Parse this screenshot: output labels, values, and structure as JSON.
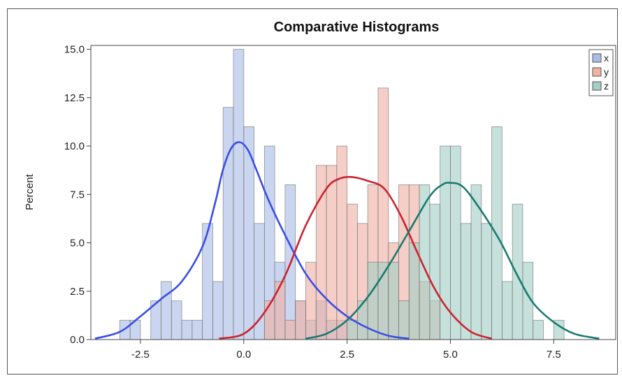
{
  "chart_data": {
    "type": "histogram",
    "title": "Comparative Histograms",
    "xlabel": "",
    "ylabel": "Percent",
    "xlim": [
      -3.7,
      9.0
    ],
    "ylim": [
      0,
      15.2
    ],
    "x_ticks": [
      "-2.5",
      "0.0",
      "2.5",
      "5.0",
      "7.5"
    ],
    "y_ticks": [
      "0.0",
      "2.5",
      "5.0",
      "7.5",
      "10.0",
      "12.5",
      "15.0"
    ],
    "bin_width": 0.25,
    "legend_position": "top-right",
    "grid": false,
    "series": [
      {
        "name": "x",
        "fill_color": "#a9bde6",
        "curve_color": "#3a4de8",
        "bins": [
          {
            "x": -2.875,
            "y": 1
          },
          {
            "x": -2.625,
            "y": 1
          },
          {
            "x": -2.125,
            "y": 2
          },
          {
            "x": -1.875,
            "y": 3
          },
          {
            "x": -1.625,
            "y": 2
          },
          {
            "x": -1.375,
            "y": 1
          },
          {
            "x": -1.125,
            "y": 1
          },
          {
            "x": -0.875,
            "y": 6
          },
          {
            "x": -0.625,
            "y": 3
          },
          {
            "x": -0.375,
            "y": 12
          },
          {
            "x": -0.125,
            "y": 15
          },
          {
            "x": 0.125,
            "y": 11
          },
          {
            "x": 0.375,
            "y": 6
          },
          {
            "x": 0.625,
            "y": 10
          },
          {
            "x": 0.875,
            "y": 4
          },
          {
            "x": 1.125,
            "y": 8
          },
          {
            "x": 1.375,
            "y": 2
          },
          {
            "x": 1.625,
            "y": 1
          },
          {
            "x": 1.875,
            "y": 2
          },
          {
            "x": 2.125,
            "y": 1
          },
          {
            "x": 2.375,
            "y": 1
          }
        ],
        "curve": [
          [
            -3.6,
            0.05
          ],
          [
            -3.0,
            0.4
          ],
          [
            -2.5,
            1.2
          ],
          [
            -2.0,
            2.1
          ],
          [
            -1.5,
            3.0
          ],
          [
            -1.0,
            4.8
          ],
          [
            -0.7,
            7.0
          ],
          [
            -0.5,
            8.8
          ],
          [
            -0.3,
            9.9
          ],
          [
            -0.1,
            10.2
          ],
          [
            0.1,
            9.8
          ],
          [
            0.3,
            8.8
          ],
          [
            0.6,
            7.2
          ],
          [
            1.0,
            5.4
          ],
          [
            1.5,
            3.4
          ],
          [
            2.0,
            2.1
          ],
          [
            2.5,
            1.2
          ],
          [
            3.0,
            0.6
          ],
          [
            3.5,
            0.2
          ],
          [
            4.0,
            0.05
          ]
        ]
      },
      {
        "name": "y",
        "fill_color": "#efb2a4",
        "curve_color": "#cc2230",
        "bins": [
          {
            "x": 0.625,
            "y": 2
          },
          {
            "x": 0.875,
            "y": 3
          },
          {
            "x": 1.125,
            "y": 1
          },
          {
            "x": 1.375,
            "y": 2
          },
          {
            "x": 1.625,
            "y": 4
          },
          {
            "x": 1.875,
            "y": 9
          },
          {
            "x": 2.125,
            "y": 9
          },
          {
            "x": 2.375,
            "y": 10
          },
          {
            "x": 2.625,
            "y": 7
          },
          {
            "x": 2.875,
            "y": 6
          },
          {
            "x": 3.125,
            "y": 8
          },
          {
            "x": 3.375,
            "y": 13
          },
          {
            "x": 3.625,
            "y": 5
          },
          {
            "x": 3.875,
            "y": 8
          },
          {
            "x": 4.125,
            "y": 8
          },
          {
            "x": 4.375,
            "y": 3
          },
          {
            "x": 4.625,
            "y": 2
          }
        ],
        "curve": [
          [
            -0.6,
            0.05
          ],
          [
            0.0,
            0.3
          ],
          [
            0.5,
            1.4
          ],
          [
            1.0,
            3.3
          ],
          [
            1.5,
            5.9
          ],
          [
            2.0,
            7.8
          ],
          [
            2.3,
            8.3
          ],
          [
            2.6,
            8.4
          ],
          [
            3.0,
            8.2
          ],
          [
            3.4,
            7.8
          ],
          [
            3.8,
            6.4
          ],
          [
            4.2,
            4.5
          ],
          [
            4.6,
            2.7
          ],
          [
            5.0,
            1.4
          ],
          [
            5.5,
            0.4
          ],
          [
            6.0,
            0.05
          ]
        ]
      },
      {
        "name": "z",
        "fill_color": "#a3cfc5",
        "curve_color": "#1a7a70",
        "bins": [
          {
            "x": 2.625,
            "y": 1
          },
          {
            "x": 2.875,
            "y": 2
          },
          {
            "x": 3.125,
            "y": 4
          },
          {
            "x": 3.375,
            "y": 4
          },
          {
            "x": 3.625,
            "y": 4
          },
          {
            "x": 3.875,
            "y": 2
          },
          {
            "x": 4.125,
            "y": 5
          },
          {
            "x": 4.375,
            "y": 8
          },
          {
            "x": 4.625,
            "y": 7
          },
          {
            "x": 4.875,
            "y": 10
          },
          {
            "x": 5.125,
            "y": 10
          },
          {
            "x": 5.375,
            "y": 6
          },
          {
            "x": 5.625,
            "y": 8
          },
          {
            "x": 5.875,
            "y": 6
          },
          {
            "x": 6.125,
            "y": 11
          },
          {
            "x": 6.375,
            "y": 3
          },
          {
            "x": 6.625,
            "y": 7
          },
          {
            "x": 6.875,
            "y": 4
          },
          {
            "x": 7.125,
            "y": 1
          },
          {
            "x": 7.625,
            "y": 1
          }
        ],
        "curve": [
          [
            1.5,
            0.05
          ],
          [
            2.0,
            0.3
          ],
          [
            2.5,
            1.0
          ],
          [
            3.0,
            2.2
          ],
          [
            3.5,
            3.8
          ],
          [
            4.0,
            5.6
          ],
          [
            4.5,
            7.4
          ],
          [
            4.8,
            8.0
          ],
          [
            5.0,
            8.1
          ],
          [
            5.3,
            7.9
          ],
          [
            5.7,
            6.8
          ],
          [
            6.2,
            5.1
          ],
          [
            6.6,
            3.4
          ],
          [
            7.0,
            1.9
          ],
          [
            7.5,
            0.9
          ],
          [
            8.0,
            0.3
          ],
          [
            8.6,
            0.05
          ]
        ]
      }
    ]
  }
}
